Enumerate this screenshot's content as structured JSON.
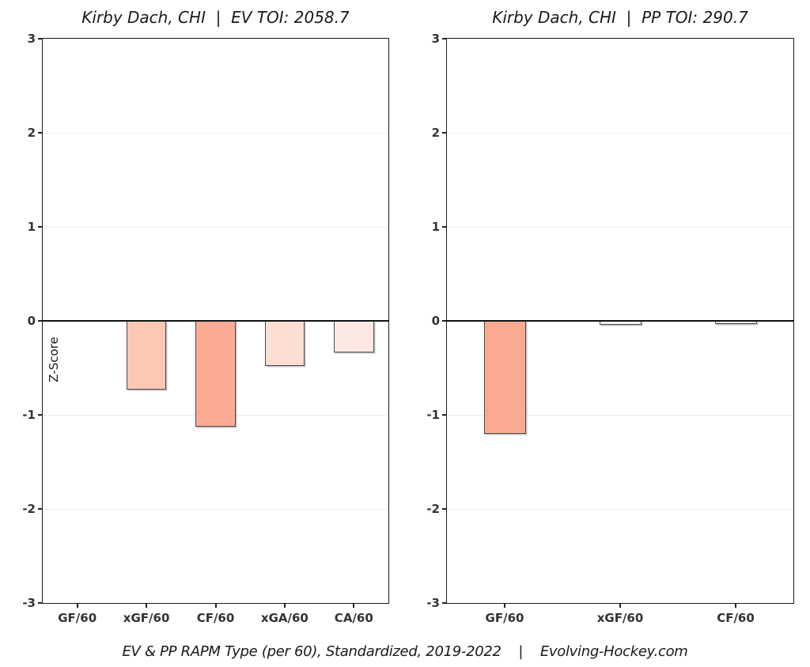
{
  "figure": {
    "background": "#ffffff",
    "caption": "EV & PP RAPM Type (per 60), Standardized, 2019-2022    |    Evolving-Hockey.com",
    "y_axis_label": "Z-Score"
  },
  "style": {
    "bar_border": "#4a4a4a",
    "grid_color": "#ececec",
    "axis_color": "#1a1a1a",
    "tick_label_color": "#333333",
    "zero_line_color": "#111111"
  },
  "chart_data": [
    {
      "type": "bar",
      "title": "Kirby Dach, CHI  |  EV TOI: 2058.7",
      "ylabel": "Z-Score",
      "ylim": [
        -3,
        3
      ],
      "yticks": [
        3,
        2,
        1,
        0,
        -1,
        -2,
        -3
      ],
      "grid": true,
      "zero_line": true,
      "legend": "none",
      "categories": [
        "GF/60",
        "xGF/60",
        "CF/60",
        "xGA/60",
        "CA/60"
      ],
      "values": [
        0.0,
        -0.73,
        -1.13,
        -0.48,
        -0.34
      ],
      "bar_colors": [
        "#ffffff",
        "#fcc7b3",
        "#fbaa93",
        "#fcded3",
        "#fde9e2"
      ]
    },
    {
      "type": "bar",
      "title": "Kirby Dach, CHI  |  PP TOI: 290.7",
      "ylabel": "",
      "ylim": [
        -3,
        3
      ],
      "yticks": [
        3,
        2,
        1,
        0,
        -1,
        -2,
        -3
      ],
      "grid": true,
      "zero_line": true,
      "legend": "none",
      "categories": [
        "GF/60",
        "xGF/60",
        "CF/60"
      ],
      "values": [
        -1.2,
        -0.04,
        -0.03
      ],
      "bar_colors": [
        "#faaa90",
        "#fffefe",
        "#fffefe"
      ]
    }
  ]
}
